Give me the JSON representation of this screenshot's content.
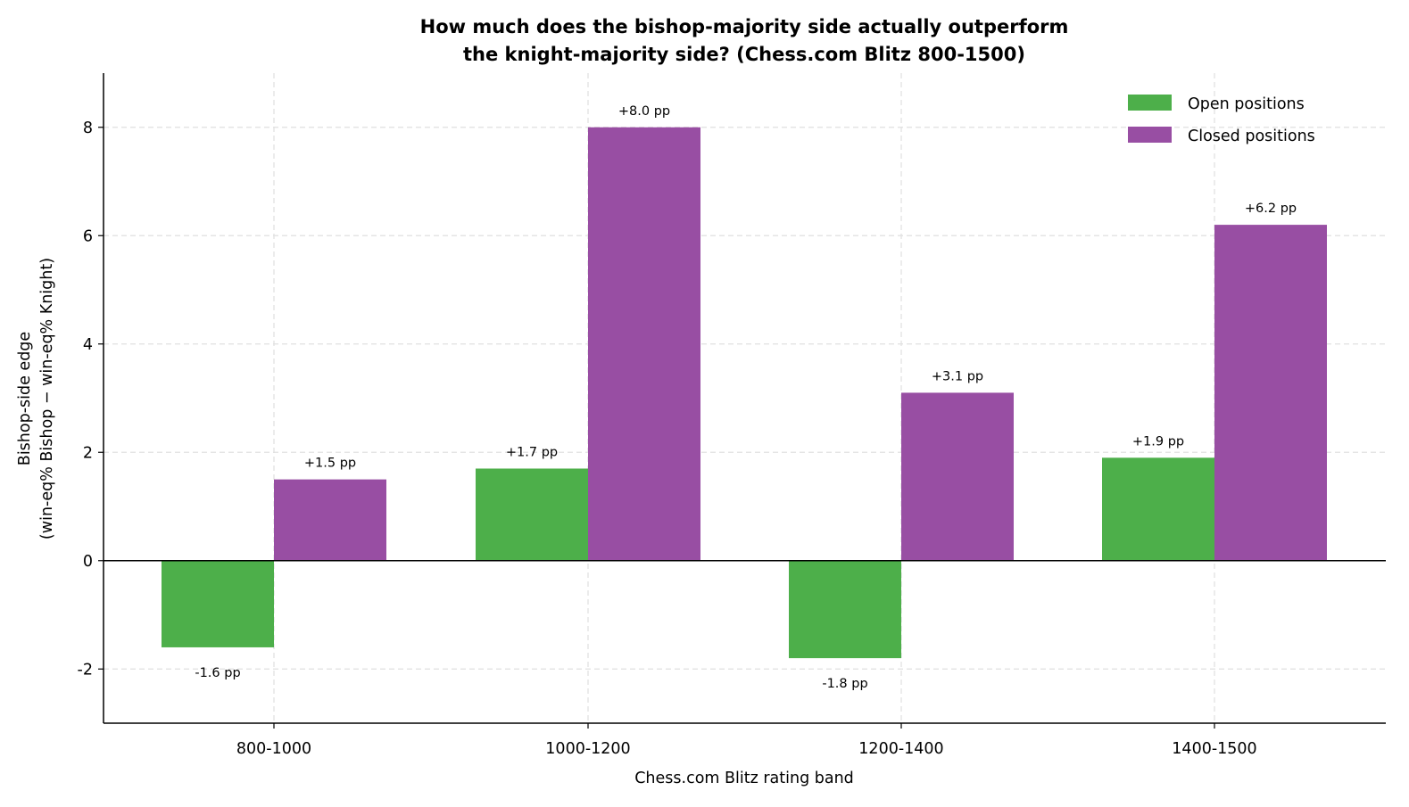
{
  "chart_data": {
    "type": "bar",
    "title_lines": [
      "How much does the bishop-majority side actually outperform",
      "the knight-majority side?  (Chess.com Blitz 800-1500)"
    ],
    "xlabel": "Chess.com Blitz rating band",
    "ylabel_lines": [
      "Bishop-side edge",
      "(win-eq% Bishop − win-eq% Knight)"
    ],
    "categories": [
      "800-1000",
      "1000-1200",
      "1200-1400",
      "1400-1500"
    ],
    "series": [
      {
        "name": "Open positions",
        "color": "#4daf4a",
        "values": [
          -1.6,
          1.7,
          -1.8,
          1.9
        ],
        "labels": [
          "-1.6 pp",
          "+1.7 pp",
          "-1.8 pp",
          "+1.9 pp"
        ]
      },
      {
        "name": "Closed positions",
        "color": "#984ea3",
        "values": [
          1.5,
          8.0,
          3.1,
          6.2
        ],
        "labels": [
          "+1.5 pp",
          "+8.0 pp",
          "+3.1 pp",
          "+6.2 pp"
        ]
      }
    ],
    "ylim": [
      -3,
      9
    ],
    "yticks": [
      -2,
      0,
      2,
      4,
      6,
      8
    ],
    "grid": true,
    "legend_position": "top-right"
  }
}
